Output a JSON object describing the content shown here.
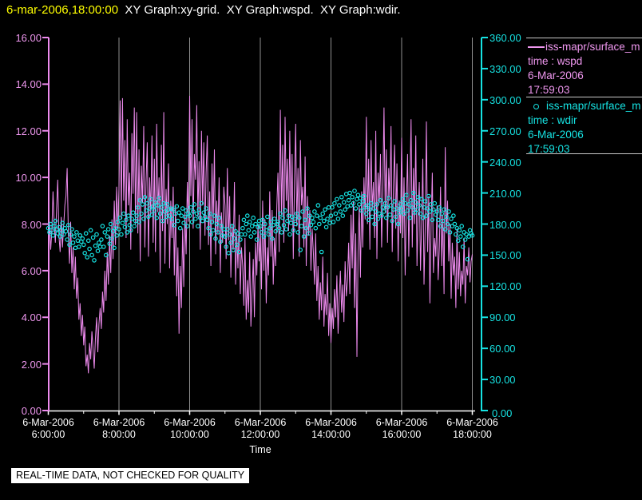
{
  "title": {
    "datetime": "6-mar-2006,18:00:00",
    "graphs": "  XY Graph:xy-grid.  XY Graph:wspd.  XY Graph:wdir."
  },
  "colors": {
    "background": "#000000",
    "wspd": "#ee8bee",
    "wdir": "#16e3e3",
    "grid": "#909090",
    "x_axis": "#ffffff",
    "title_date": "#ffff00",
    "title_text": "#ffffff",
    "legend_divider": "#c9c9c9",
    "notice_bg": "#ffffff",
    "notice_fg": "#000000"
  },
  "axes": {
    "left": {
      "labels": [
        "16.00",
        "14.00",
        "12.00",
        "10.00",
        "8.00",
        "6.00",
        "4.00",
        "2.00",
        "0.00"
      ],
      "values": [
        16,
        14,
        12,
        10,
        8,
        6,
        4,
        2,
        0
      ]
    },
    "right": {
      "labels": [
        "360.00",
        "330.00",
        "300.00",
        "270.00",
        "240.00",
        "210.00",
        "180.00",
        "150.00",
        "120.00",
        "90.00",
        "60.00",
        "30.00",
        "0.00"
      ],
      "values": [
        360,
        330,
        300,
        270,
        240,
        210,
        180,
        150,
        120,
        90,
        60,
        30,
        0
      ]
    },
    "x": {
      "title": "Time",
      "major_ticks": [
        {
          "hour": 6,
          "date": "6-Mar-2006",
          "time": "6:00:00"
        },
        {
          "hour": 8,
          "date": "6-Mar-2006",
          "time": "8:00:00"
        },
        {
          "hour": 10,
          "date": "6-Mar-2006",
          "time": "10:00:00"
        },
        {
          "hour": 12,
          "date": "6-Mar-2006",
          "time": "12:00:00"
        },
        {
          "hour": 14,
          "date": "6-Mar-2006",
          "time": "14:00:00"
        },
        {
          "hour": 16,
          "date": "6-Mar-2006",
          "time": "16:00:00"
        },
        {
          "hour": 18,
          "date": "6-Mar-2006",
          "time": "18:00:00"
        }
      ],
      "minor_tick_hours": [
        7,
        9,
        11,
        13,
        15,
        17
      ]
    }
  },
  "legend": {
    "entries": [
      {
        "name": "iss-mapr/surface_m",
        "field": "time : wspd",
        "date": "6-Mar-2006",
        "time": "17:59:03"
      },
      {
        "name": "iss-mapr/surface_m",
        "field": "time : wdir",
        "date": "6-Mar-2006",
        "time": "17:59:03"
      }
    ]
  },
  "notice": "REAL-TIME DATA, NOT CHECKED FOR QUALITY",
  "chart_data": {
    "type": "line",
    "title": "XY Graph: wspd (left axis, line) and wdir (right axis, scatter) vs Time",
    "x_axis": {
      "label": "Time",
      "start_hour": 6,
      "end_hour": 18,
      "date": "6-Mar-2006",
      "tick_interval_hours": 2,
      "grid": true
    },
    "left_axis": {
      "label": "wspd",
      "range": [
        0,
        16
      ],
      "tick_step": 2
    },
    "right_axis": {
      "label": "wdir",
      "range": [
        0,
        360
      ],
      "tick_step": 30
    },
    "sample_step_minutes": 2,
    "series": [
      {
        "name": "iss-mapr/surface_m time : wspd 6-Mar-2006 17:59:03",
        "type": "line",
        "axis": "left",
        "color": "#ee8bee",
        "values": [
          7.4,
          8.1,
          6.9,
          7.7,
          9.4,
          8.0,
          7.2,
          8.6,
          9.9,
          7.5,
          6.8,
          8.3,
          7.0,
          7.9,
          8.8,
          9.2,
          10.4,
          7.6,
          6.3,
          8.1,
          5.9,
          7.0,
          5.2,
          6.6,
          4.8,
          5.7,
          3.9,
          4.6,
          3.2,
          4.1,
          2.8,
          3.6,
          1.9,
          2.4,
          1.6,
          2.9,
          2.2,
          3.4,
          2.6,
          1.8,
          3.1,
          4.0,
          2.5,
          3.7,
          4.4,
          3.5,
          5.1,
          4.2,
          6.0,
          4.7,
          6.8,
          5.4,
          7.5,
          5.9,
          8.2,
          6.5,
          9.0,
          7.1,
          9.6,
          7.8,
          9.5,
          13.3,
          8.2,
          13.4,
          9.0,
          11.6,
          7.4,
          12.5,
          8.8,
          10.2,
          6.9,
          11.9,
          9.3,
          13.0,
          8.0,
          12.8,
          7.6,
          11.2,
          6.4,
          10.5,
          8.9,
          12.2,
          7.0,
          9.8,
          11.5,
          6.6,
          10.0,
          8.4,
          11.8,
          7.2,
          10.8,
          6.8,
          12.3,
          8.5,
          10.0,
          5.9,
          11.4,
          7.7,
          12.8,
          6.3,
          9.5,
          8.0,
          10.6,
          6.1,
          9.0,
          7.4,
          9.6,
          5.8,
          8.8,
          4.9,
          7.0,
          3.3,
          6.2,
          4.4,
          7.8,
          5.3,
          8.5,
          6.7,
          9.8,
          8.1,
          13.5,
          9.2,
          12.5,
          7.8,
          11.0,
          9.9,
          13.1,
          8.3,
          10.7,
          6.9,
          12.0,
          8.8,
          11.5,
          7.5,
          10.2,
          11.8,
          7.1,
          9.4,
          6.2,
          10.6,
          8.0,
          11.2,
          6.7,
          9.0,
          7.6,
          10.0,
          5.9,
          8.5,
          7.2,
          9.6,
          8.8,
          6.5,
          10.4,
          7.3,
          9.2,
          5.7,
          8.0,
          6.9,
          9.8,
          5.4,
          7.6,
          6.1,
          8.4,
          5.0,
          7.0,
          6.2,
          4.5,
          7.4,
          3.9,
          5.6,
          4.2,
          6.8,
          3.6,
          5.1,
          6.5,
          4.0,
          7.2,
          5.8,
          8.0,
          6.4,
          7.8,
          5.2,
          9.0,
          6.0,
          8.2,
          4.6,
          7.0,
          5.8,
          9.4,
          6.6,
          8.6,
          5.4,
          7.4,
          6.2,
          8.8,
          10.2,
          6.8,
          12.9,
          8.4,
          11.4,
          7.2,
          12.6,
          9.0,
          10.8,
          7.7,
          12.0,
          8.1,
          11.0,
          6.5,
          9.8,
          12.3,
          7.9,
          10.4,
          6.6,
          11.6,
          8.8,
          9.6,
          7.0,
          10.9,
          6.2,
          9.2,
          7.5,
          8.6,
          6.0,
          7.8,
          6.8,
          5.4,
          7.6,
          4.7,
          6.2,
          3.9,
          5.5,
          4.3,
          6.6,
          3.6,
          5.0,
          4.1,
          5.9,
          3.2,
          4.6,
          2.9,
          4.4,
          3.5,
          5.2,
          4.0,
          5.8,
          3.3,
          4.8,
          6.0,
          4.2,
          5.4,
          3.8,
          6.4,
          4.9,
          5.6,
          7.2,
          5.0,
          8.4,
          6.1,
          9.0,
          4.4,
          7.6,
          2.3,
          6.8,
          8.8,
          5.7,
          9.4,
          7.0,
          10.0,
          8.2,
          12.6,
          8.0,
          10.8,
          6.9,
          11.6,
          8.6,
          9.8,
          7.4,
          12.0,
          6.5,
          10.2,
          8.9,
          11.0,
          7.0,
          9.4,
          13.0,
          8.5,
          11.2,
          7.2,
          10.4,
          9.0,
          12.2,
          6.8,
          9.6,
          11.4,
          7.8,
          10.6,
          6.4,
          9.0,
          7.6,
          11.7,
          7.4,
          10.0,
          5.8,
          8.8,
          11.0,
          6.6,
          9.4,
          12.5,
          7.0,
          10.4,
          8.0,
          11.8,
          6.2,
          8.6,
          9.8,
          6.0,
          8.2,
          10.8,
          5.4,
          7.8,
          12.4,
          6.8,
          9.2,
          4.6,
          8.0,
          10.2,
          5.9,
          7.4,
          6.6,
          8.8,
          5.6,
          7.0,
          9.6,
          6.2,
          8.4,
          5.0,
          11.3,
          7.6,
          9.0,
          6.4,
          8.0,
          4.8,
          7.2,
          5.8,
          6.6,
          4.4,
          7.8,
          5.2,
          6.8,
          4.9,
          6.0,
          5.4,
          7.4,
          4.6,
          6.2,
          5.8,
          7.0,
          5.5,
          6.4,
          6.7
        ]
      },
      {
        "name": "iss-mapr/surface_m time : wdir 6-Mar-2006 17:59:03",
        "type": "scatter",
        "axis": "right",
        "color": "#16e3e3",
        "values": [
          176,
          172,
          180,
          174,
          169,
          178,
          183,
          175,
          171,
          177,
          168,
          174,
          181,
          170,
          176,
          173,
          165,
          179,
          160,
          170,
          175,
          162,
          168,
          157,
          172,
          164,
          158,
          169,
          163,
          166,
          160,
          152,
          171,
          148,
          164,
          156,
          174,
          150,
          167,
          145,
          159,
          170,
          154,
          162,
          158,
          165,
          178,
          158,
          172,
          150,
          168,
          175,
          161,
          180,
          166,
          173,
          157,
          176,
          169,
          182,
          175,
          186,
          170,
          181,
          190,
          177,
          184,
          172,
          188,
          179,
          174,
          185,
          191,
          178,
          183,
          188,
          196,
          182,
          203,
          190,
          199,
          185,
          206,
          193,
          200,
          187,
          195,
          204,
          189,
          197,
          193,
          201,
          186,
          198,
          205,
          190,
          196,
          183,
          200,
          192,
          187,
          199,
          194,
          188,
          195,
          185,
          194,
          179,
          190,
          197,
          183,
          191,
          176,
          188,
          195,
          181,
          187,
          193,
          178,
          190,
          188,
          196,
          182,
          192,
          199,
          185,
          190,
          178,
          194,
          186,
          200,
          183,
          191,
          187,
          195,
          184,
          176,
          190,
          170,
          182,
          174,
          188,
          166,
          180,
          172,
          186,
          163,
          178,
          169,
          175,
          168,
          158,
          175,
          152,
          170,
          162,
          178,
          155,
          166,
          173,
          160,
          171,
          153,
          165,
          170,
          176,
          184,
          170,
          180,
          188,
          174,
          182,
          168,
          178,
          186,
          172,
          180,
          165,
          177,
          183,
          178,
          172,
          184,
          168,
          180,
          174,
          187,
          170,
          176,
          182,
          166,
          179,
          185,
          173,
          180,
          182,
          176,
          190,
          172,
          186,
          179,
          193,
          175,
          183,
          188,
          170,
          181,
          187,
          174,
          185,
          180,
          190,
          172,
          186,
          155,
          178,
          192,
          168,
          184,
          176,
          195,
          171,
          188,
          179,
          186,
          182,
          192,
          176,
          188,
          198,
          180,
          186,
          153,
          190,
          183,
          194,
          177,
          185,
          196,
          181,
          188,
          196,
          182,
          200,
          190,
          204,
          185,
          198,
          192,
          206,
          188,
          201,
          194,
          209,
          197,
          203,
          210,
          198,
          206,
          200,
          212,
          195,
          204,
          208,
          199,
          205,
          193,
          202,
          207,
          196,
          190,
          198,
          184,
          194,
          200,
          187,
          195,
          180,
          192,
          199,
          185,
          190,
          203,
          188,
          196,
          192,
          200,
          186,
          196,
          205,
          189,
          198,
          183,
          194,
          202,
          187,
          195,
          180,
          191,
          199,
          195,
          204,
          190,
          200,
          208,
          193,
          199,
          186,
          203,
          196,
          210,
          191,
          201,
          194,
          206,
          198,
          190,
          204,
          186,
          196,
          202,
          188,
          195,
          207,
          192,
          199,
          184,
          194,
          200,
          189,
          192,
          184,
          196,
          178,
          190,
          183,
          194,
          175,
          187,
          180,
          192,
          172,
          185,
          178,
          188,
          180,
          170,
          176,
          164,
          174,
          168,
          178,
          158,
          172,
          165,
          170,
          146,
          168,
          174,
          171,
          169
        ]
      }
    ]
  }
}
